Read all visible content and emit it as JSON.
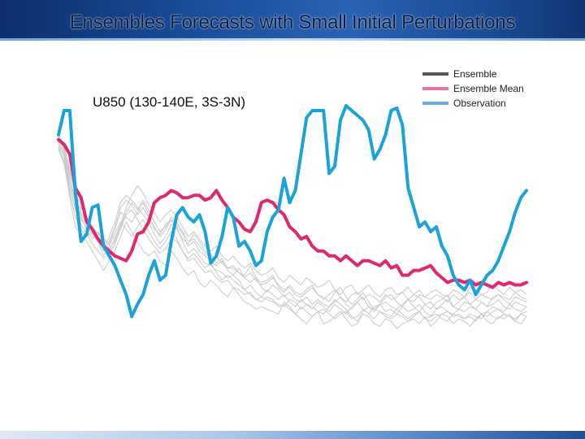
{
  "slide": {
    "title": "Ensembles Forecasts with Small Initial Perturbations"
  },
  "chart_data": {
    "type": "line",
    "title": "U850 (130-140E, 3S-3N)",
    "xlabel": "",
    "ylabel": "",
    "grid": false,
    "legend_placement": "top-right",
    "ylim": [
      0,
      100
    ],
    "x": [
      0,
      1,
      2,
      3,
      4,
      5,
      6,
      7,
      8,
      9,
      10,
      11,
      12,
      13,
      14,
      15,
      16,
      17,
      18,
      19,
      20,
      21,
      22,
      23,
      24,
      25,
      26,
      27,
      28,
      29,
      30,
      31,
      32,
      33,
      34,
      35,
      36,
      37,
      38,
      39,
      40,
      41,
      42,
      43,
      44,
      45,
      46,
      47,
      48,
      49,
      50,
      51,
      52,
      53,
      54,
      55,
      56,
      57,
      58,
      59,
      60,
      61,
      62,
      63,
      64,
      65,
      66,
      67,
      68,
      69,
      70,
      71,
      72,
      73,
      74,
      75,
      76,
      77,
      78,
      79,
      80,
      81,
      82,
      83
    ],
    "series": [
      {
        "name": "Ensemble",
        "role": "ensemble",
        "color": "#c8c8c8",
        "members": [
          [
            85,
            80,
            66,
            58,
            53,
            50,
            47,
            45,
            41,
            46,
            52,
            60,
            63,
            61,
            58,
            55,
            52,
            47,
            43,
            46,
            51,
            50,
            44,
            39,
            41,
            38,
            35,
            34,
            32,
            31,
            29,
            30,
            28,
            24,
            22,
            20,
            21,
            20,
            19,
            18,
            17,
            20,
            19,
            16,
            18,
            17,
            15,
            14,
            17,
            20,
            18,
            16,
            13,
            11,
            15,
            17,
            16,
            15,
            14,
            13,
            16,
            14,
            12,
            14,
            15,
            12,
            11,
            13,
            14,
            15,
            13,
            14,
            12,
            13,
            11,
            14,
            13,
            15,
            16,
            14,
            13,
            12,
            14,
            15
          ],
          [
            88,
            84,
            72,
            64,
            58,
            54,
            50,
            47,
            45,
            43,
            49,
            56,
            54,
            52,
            56,
            60,
            55,
            49,
            47,
            51,
            53,
            49,
            45,
            43,
            47,
            44,
            40,
            39,
            35,
            37,
            33,
            33,
            31,
            30,
            34,
            29,
            27,
            28,
            30,
            25,
            23,
            26,
            23,
            22,
            24,
            26,
            22,
            21,
            19,
            23,
            25,
            21,
            18,
            20,
            23,
            19,
            16,
            18,
            21,
            22,
            19,
            17,
            20,
            22,
            21,
            18,
            16,
            19,
            20,
            22,
            17,
            19,
            21,
            18,
            20,
            19,
            17,
            21,
            22,
            20,
            18,
            21,
            20,
            19
          ],
          [
            82,
            76,
            62,
            50,
            46,
            44,
            40,
            36,
            32,
            36,
            40,
            46,
            52,
            48,
            44,
            40,
            38,
            40,
            36,
            34,
            40,
            37,
            33,
            30,
            32,
            27,
            25,
            28,
            26,
            23,
            21,
            25,
            22,
            19,
            18,
            16,
            17,
            16,
            15,
            14,
            19,
            17,
            14,
            12,
            10,
            13,
            15,
            10,
            11,
            13,
            15,
            12,
            9,
            10,
            14,
            13,
            10,
            9,
            12,
            11,
            8,
            10,
            11,
            12,
            10,
            13,
            9,
            11,
            14,
            13,
            10,
            12,
            11,
            9,
            12,
            14,
            11,
            10,
            13,
            12,
            14,
            11,
            10,
            13
          ],
          [
            86,
            82,
            74,
            62,
            56,
            52,
            49,
            46,
            43,
            40,
            45,
            51,
            58,
            63,
            67,
            64,
            59,
            56,
            52,
            55,
            57,
            54,
            50,
            46,
            48,
            45,
            42,
            40,
            42,
            38,
            36,
            38,
            35,
            33,
            35,
            32,
            30,
            31,
            33,
            29,
            27,
            30,
            28,
            26,
            29,
            27,
            25,
            26,
            28,
            24,
            22,
            25,
            26,
            22,
            24,
            26,
            23,
            21,
            24,
            25,
            22,
            23,
            25,
            22,
            24,
            21,
            23,
            24,
            22,
            21,
            24,
            23,
            21,
            25,
            24,
            22,
            23,
            26,
            24,
            22,
            25,
            23,
            24,
            22
          ],
          [
            84,
            79,
            64,
            54,
            49,
            46,
            48,
            44,
            38,
            42,
            47,
            52,
            49,
            46,
            50,
            53,
            48,
            44,
            41,
            44,
            48,
            45,
            40,
            37,
            39,
            36,
            33,
            35,
            31,
            28,
            30,
            28,
            26,
            24,
            26,
            23,
            21,
            24,
            22,
            20,
            22,
            19,
            17,
            20,
            18,
            16,
            19,
            17,
            15,
            18,
            16,
            14,
            17,
            19,
            16,
            14,
            17,
            18,
            15,
            16,
            14,
            17,
            15,
            16,
            18,
            15,
            13,
            16,
            17,
            15,
            14,
            16,
            15,
            17,
            16,
            14,
            15,
            17,
            16,
            15,
            18,
            16,
            15,
            17
          ],
          [
            87,
            81,
            68,
            60,
            55,
            51,
            47,
            44,
            40,
            44,
            50,
            58,
            61,
            59,
            55,
            58,
            54,
            50,
            46,
            49,
            53,
            51,
            47,
            42,
            44,
            40,
            38,
            36,
            34,
            36,
            32,
            30,
            33,
            29,
            27,
            29,
            25,
            23,
            26,
            24,
            21,
            23,
            20,
            19,
            21,
            18,
            20,
            18,
            17,
            19,
            21,
            18,
            16,
            19,
            21,
            17,
            15,
            18,
            19,
            17,
            16,
            18,
            20,
            17,
            15,
            18,
            19,
            16,
            18,
            20,
            17,
            16,
            19,
            18,
            16,
            19,
            17,
            18,
            20,
            17,
            16,
            19,
            18,
            17
          ],
          [
            83,
            77,
            66,
            57,
            51,
            47,
            43,
            40,
            37,
            39,
            43,
            49,
            55,
            57,
            53,
            49,
            45,
            42,
            39,
            41,
            45,
            44,
            40,
            36,
            37,
            34,
            31,
            32,
            29,
            27,
            28,
            25,
            24,
            22,
            23,
            20,
            19,
            21,
            20,
            17,
            18,
            16,
            14,
            17,
            15,
            13,
            15,
            16,
            14,
            12,
            14,
            15,
            12,
            13,
            16,
            14,
            12,
            15,
            13,
            12,
            14,
            13,
            11,
            13,
            15,
            12,
            13,
            14,
            12,
            11,
            14,
            13,
            12,
            14,
            13,
            12,
            15,
            13,
            12,
            14,
            13,
            11,
            14,
            13
          ],
          [
            86,
            83,
            70,
            61,
            54,
            49,
            45,
            48,
            43,
            41,
            44,
            50,
            56,
            60,
            57,
            61,
            57,
            52,
            48,
            50,
            54,
            52,
            48,
            44,
            45,
            42,
            39,
            37,
            38,
            35,
            33,
            34,
            31,
            29,
            31,
            28,
            26,
            27,
            29,
            26,
            24,
            25,
            22,
            21,
            23,
            25,
            22,
            20,
            22,
            24,
            21,
            19,
            22,
            23,
            20,
            22,
            21,
            19,
            22,
            20,
            21,
            23,
            20,
            19,
            22,
            21,
            20,
            22,
            21,
            19,
            22,
            20,
            21,
            23,
            20,
            22,
            21,
            20,
            22,
            21,
            20,
            23,
            21,
            20
          ]
        ]
      },
      {
        "name": "Ensemble Mean",
        "role": "mean",
        "color": "#e0286f",
        "values": [
          86,
          84,
          80,
          66,
          62,
          52,
          49,
          45,
          42,
          40,
          38,
          37,
          36,
          40,
          47,
          48,
          52,
          60,
          62,
          63,
          65,
          64,
          62,
          62,
          63,
          63,
          61,
          62,
          65,
          61,
          58,
          54,
          52,
          49,
          48,
          52,
          60,
          61,
          60,
          57,
          55,
          50,
          48,
          45,
          46,
          42,
          40,
          40,
          38,
          38,
          36,
          38,
          36,
          34,
          36,
          36,
          35,
          34,
          36,
          33,
          34,
          30,
          30,
          32,
          32,
          33,
          34,
          31,
          29,
          27,
          28,
          28,
          27,
          28,
          26,
          27,
          26,
          25,
          27,
          26,
          27,
          26,
          26,
          27
        ]
      },
      {
        "name": "Observation",
        "role": "observation",
        "color": "#1aa3d9",
        "values": [
          88,
          98,
          98,
          64,
          44,
          47,
          58,
          59,
          42,
          38,
          34,
          28,
          22,
          13,
          18,
          22,
          30,
          36,
          28,
          30,
          44,
          55,
          58,
          54,
          52,
          55,
          48,
          35,
          38,
          46,
          58,
          54,
          42,
          44,
          40,
          34,
          36,
          48,
          54,
          57,
          70,
          60,
          65,
          80,
          95,
          98,
          98,
          98,
          72,
          75,
          94,
          100,
          98,
          96,
          94,
          90,
          78,
          82,
          88,
          98,
          99,
          92,
          66,
          58,
          50,
          52,
          48,
          50,
          42,
          38,
          30,
          26,
          24,
          28,
          22,
          26,
          30,
          32,
          36,
          42,
          48,
          56,
          62,
          65
        ]
      }
    ]
  }
}
